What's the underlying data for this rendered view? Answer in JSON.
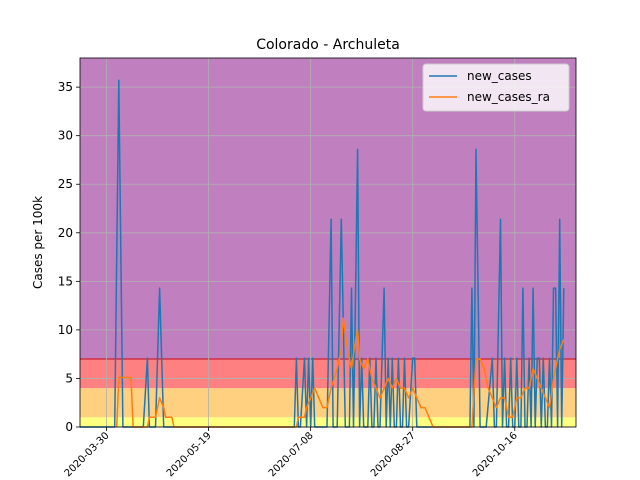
{
  "chart_data": {
    "type": "line",
    "title": "Colorado - Archuleta",
    "xlabel": "",
    "ylabel": "Cases per 100k",
    "ylim": [
      0,
      38
    ],
    "yticks": [
      0,
      5,
      10,
      15,
      20,
      25,
      30,
      35
    ],
    "xlim": [
      "2020-03-17",
      "2020-11-15"
    ],
    "xticks": [
      "2020-03-30",
      "2020-05-19",
      "2020-07-08",
      "2020-08-27",
      "2020-10-16"
    ],
    "grid": true,
    "legend_position": "top-right",
    "risk_bands": [
      {
        "from": 0,
        "to": 1,
        "color": "#ffff80"
      },
      {
        "from": 1,
        "to": 4,
        "color": "#ffd080"
      },
      {
        "from": 4,
        "to": 7,
        "color": "#ff8080"
      },
      {
        "from": 7,
        "to": 38,
        "color": "#c080c0"
      }
    ],
    "threshold_line": {
      "value": 7,
      "color": "#cc2233"
    },
    "series": [
      {
        "name": "new_cases",
        "color": "#1f77b4",
        "points": [
          [
            "2020-03-17",
            0
          ],
          [
            "2020-04-03",
            0
          ],
          [
            "2020-04-05",
            35.7
          ],
          [
            "2020-04-07",
            0
          ],
          [
            "2020-04-17",
            0
          ],
          [
            "2020-04-19",
            7.1
          ],
          [
            "2020-04-20",
            0
          ],
          [
            "2020-04-23",
            0
          ],
          [
            "2020-04-25",
            14.3
          ],
          [
            "2020-04-27",
            0
          ],
          [
            "2020-05-01",
            0
          ],
          [
            "2020-06-30",
            0
          ],
          [
            "2020-07-01",
            7.1
          ],
          [
            "2020-07-02",
            0
          ],
          [
            "2020-07-03",
            0
          ],
          [
            "2020-07-05",
            7.1
          ],
          [
            "2020-07-06",
            0
          ],
          [
            "2020-07-07",
            7.1
          ],
          [
            "2020-07-08",
            0
          ],
          [
            "2020-07-09",
            7.1
          ],
          [
            "2020-07-10",
            0
          ],
          [
            "2020-07-12",
            0
          ],
          [
            "2020-07-16",
            0
          ],
          [
            "2020-07-18",
            21.4
          ],
          [
            "2020-07-19",
            0
          ],
          [
            "2020-07-21",
            0
          ],
          [
            "2020-07-23",
            21.4
          ],
          [
            "2020-07-25",
            0
          ],
          [
            "2020-07-27",
            0
          ],
          [
            "2020-07-28",
            14.3
          ],
          [
            "2020-07-29",
            0
          ],
          [
            "2020-07-30",
            14.3
          ],
          [
            "2020-07-31",
            28.6
          ],
          [
            "2020-08-01",
            0
          ],
          [
            "2020-08-02",
            7.1
          ],
          [
            "2020-08-03",
            0
          ],
          [
            "2020-08-05",
            0
          ],
          [
            "2020-08-06",
            7.1
          ],
          [
            "2020-08-07",
            0
          ],
          [
            "2020-08-08",
            0
          ],
          [
            "2020-08-09",
            7.1
          ],
          [
            "2020-08-10",
            0
          ],
          [
            "2020-08-11",
            0
          ],
          [
            "2020-08-13",
            14.3
          ],
          [
            "2020-08-14",
            0
          ],
          [
            "2020-08-15",
            7.1
          ],
          [
            "2020-08-16",
            0
          ],
          [
            "2020-08-17",
            7.1
          ],
          [
            "2020-08-18",
            0
          ],
          [
            "2020-08-19",
            0
          ],
          [
            "2020-08-20",
            7.1
          ],
          [
            "2020-08-21",
            0
          ],
          [
            "2020-08-22",
            0
          ],
          [
            "2020-08-23",
            7.1
          ],
          [
            "2020-08-24",
            0
          ],
          [
            "2020-08-25",
            0
          ],
          [
            "2020-08-27",
            7.1
          ],
          [
            "2020-08-28",
            7.1
          ],
          [
            "2020-08-29",
            0
          ],
          [
            "2020-09-24",
            0
          ],
          [
            "2020-09-25",
            14.3
          ],
          [
            "2020-09-26",
            0
          ],
          [
            "2020-09-27",
            28.6
          ],
          [
            "2020-09-29",
            0
          ],
          [
            "2020-10-02",
            0
          ],
          [
            "2020-10-05",
            7.1
          ],
          [
            "2020-10-06",
            0
          ],
          [
            "2020-10-07",
            0
          ],
          [
            "2020-10-09",
            21.4
          ],
          [
            "2020-10-10",
            0
          ],
          [
            "2020-10-11",
            7.1
          ],
          [
            "2020-10-12",
            0
          ],
          [
            "2020-10-13",
            0
          ],
          [
            "2020-10-14",
            7.1
          ],
          [
            "2020-10-15",
            0
          ],
          [
            "2020-10-16",
            0
          ],
          [
            "2020-10-17",
            7.1
          ],
          [
            "2020-10-18",
            0
          ],
          [
            "2020-10-19",
            0
          ],
          [
            "2020-10-20",
            14.3
          ],
          [
            "2020-10-21",
            0
          ],
          [
            "2020-10-22",
            0
          ],
          [
            "2020-10-23",
            7.1
          ],
          [
            "2020-10-24",
            0
          ],
          [
            "2020-10-25",
            14.3
          ],
          [
            "2020-10-26",
            0
          ],
          [
            "2020-10-27",
            7.1
          ],
          [
            "2020-10-28",
            7.1
          ],
          [
            "2020-10-29",
            0
          ],
          [
            "2020-10-30",
            7.1
          ],
          [
            "2020-10-31",
            0
          ],
          [
            "2020-11-01",
            0
          ],
          [
            "2020-11-02",
            7.1
          ],
          [
            "2020-11-03",
            0
          ],
          [
            "2020-11-04",
            14.3
          ],
          [
            "2020-11-05",
            14.3
          ],
          [
            "2020-11-06",
            0
          ],
          [
            "2020-11-07",
            21.4
          ],
          [
            "2020-11-08",
            0
          ],
          [
            "2020-11-09",
            14.3
          ]
        ]
      },
      {
        "name": "new_cases_ra",
        "color": "#ff7f0e",
        "points": [
          [
            "2020-04-04",
            0
          ],
          [
            "2020-04-05",
            5.1
          ],
          [
            "2020-04-08",
            5.1
          ],
          [
            "2020-04-11",
            5.1
          ],
          [
            "2020-04-12",
            0
          ],
          [
            "2020-04-19",
            0
          ],
          [
            "2020-04-20",
            1
          ],
          [
            "2020-04-23",
            1
          ],
          [
            "2020-04-25",
            3.0
          ],
          [
            "2020-04-27",
            2.0
          ],
          [
            "2020-04-28",
            1
          ],
          [
            "2020-05-01",
            1
          ],
          [
            "2020-05-02",
            0
          ],
          [
            "2020-07-01",
            0
          ],
          [
            "2020-07-02",
            1
          ],
          [
            "2020-07-05",
            1
          ],
          [
            "2020-07-06",
            2
          ],
          [
            "2020-07-08",
            3
          ],
          [
            "2020-07-10",
            4
          ],
          [
            "2020-07-12",
            3
          ],
          [
            "2020-07-14",
            2
          ],
          [
            "2020-07-16",
            2
          ],
          [
            "2020-07-18",
            4
          ],
          [
            "2020-07-21",
            6
          ],
          [
            "2020-07-23",
            8
          ],
          [
            "2020-07-24",
            11.2
          ],
          [
            "2020-07-26",
            8
          ],
          [
            "2020-07-28",
            6
          ],
          [
            "2020-07-30",
            9
          ],
          [
            "2020-07-31",
            10
          ],
          [
            "2020-08-01",
            7
          ],
          [
            "2020-08-03",
            6
          ],
          [
            "2020-08-05",
            7
          ],
          [
            "2020-08-07",
            5
          ],
          [
            "2020-08-09",
            4
          ],
          [
            "2020-08-11",
            3
          ],
          [
            "2020-08-13",
            4
          ],
          [
            "2020-08-15",
            5
          ],
          [
            "2020-08-17",
            4
          ],
          [
            "2020-08-19",
            5
          ],
          [
            "2020-08-21",
            4
          ],
          [
            "2020-08-23",
            4
          ],
          [
            "2020-08-25",
            3
          ],
          [
            "2020-08-27",
            4
          ],
          [
            "2020-08-29",
            3
          ],
          [
            "2020-08-31",
            2
          ],
          [
            "2020-09-02",
            2
          ],
          [
            "2020-09-04",
            1
          ],
          [
            "2020-09-06",
            0
          ],
          [
            "2020-09-25",
            0
          ],
          [
            "2020-09-27",
            7
          ],
          [
            "2020-09-29",
            7
          ],
          [
            "2020-10-01",
            6
          ],
          [
            "2020-10-03",
            4
          ],
          [
            "2020-10-05",
            3
          ],
          [
            "2020-10-07",
            2
          ],
          [
            "2020-10-09",
            3
          ],
          [
            "2020-10-11",
            3
          ],
          [
            "2020-10-13",
            1
          ],
          [
            "2020-10-15",
            1
          ],
          [
            "2020-10-17",
            3
          ],
          [
            "2020-10-19",
            3
          ],
          [
            "2020-10-21",
            4
          ],
          [
            "2020-10-23",
            4
          ],
          [
            "2020-10-25",
            6
          ],
          [
            "2020-10-27",
            5
          ],
          [
            "2020-10-29",
            4
          ],
          [
            "2020-10-31",
            3
          ],
          [
            "2020-11-02",
            2
          ],
          [
            "2020-11-04",
            5
          ],
          [
            "2020-11-06",
            7
          ],
          [
            "2020-11-07",
            8
          ],
          [
            "2020-11-09",
            9
          ]
        ]
      }
    ]
  }
}
